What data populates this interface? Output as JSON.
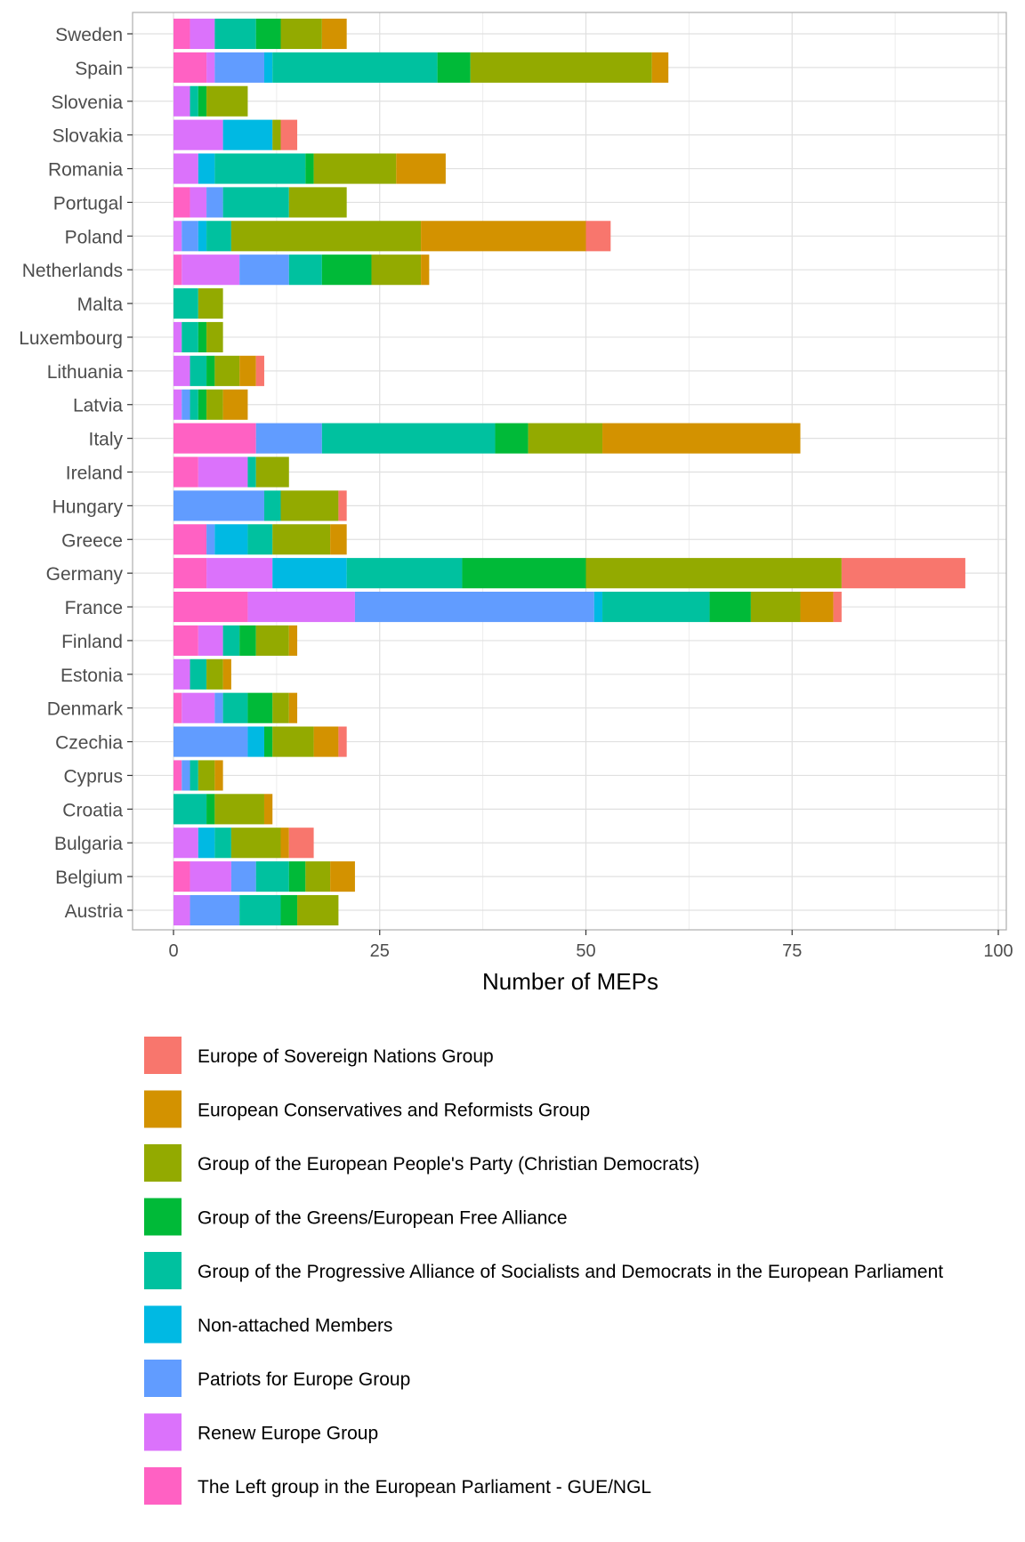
{
  "chart_data": {
    "type": "bar",
    "orientation": "horizontal",
    "stacked": true,
    "xlabel": "Number of MEPs",
    "ylabel": "",
    "xlim": [
      -10,
      100
    ],
    "x_ticks": [
      0,
      25,
      50,
      75,
      100
    ],
    "grid": true,
    "legend_position": "bottom",
    "categories": [
      "Austria",
      "Belgium",
      "Bulgaria",
      "Croatia",
      "Cyprus",
      "Czechia",
      "Denmark",
      "Estonia",
      "Finland",
      "France",
      "Germany",
      "Greece",
      "Hungary",
      "Ireland",
      "Italy",
      "Latvia",
      "Lithuania",
      "Luxembourg",
      "Malta",
      "Netherlands",
      "Poland",
      "Portugal",
      "Romania",
      "Slovakia",
      "Slovenia",
      "Spain",
      "Sweden"
    ],
    "series": [
      {
        "name": "The Left group in the European Parliament - GUE/NGL",
        "color": "#FF61C3",
        "values": [
          0,
          2,
          0,
          0,
          1,
          0,
          1,
          0,
          3,
          9,
          4,
          4,
          0,
          3,
          10,
          0,
          0,
          0,
          0,
          1,
          0,
          2,
          0,
          0,
          0,
          4,
          2
        ]
      },
      {
        "name": "Renew Europe Group",
        "color": "#DB72FB",
        "values": [
          2,
          5,
          3,
          0,
          0,
          0,
          4,
          2,
          3,
          13,
          8,
          0,
          0,
          6,
          0,
          1,
          2,
          1,
          0,
          7,
          1,
          2,
          3,
          6,
          2,
          1,
          3
        ]
      },
      {
        "name": "Patriots for Europe Group",
        "color": "#619CFF",
        "values": [
          6,
          3,
          0,
          0,
          1,
          9,
          1,
          0,
          0,
          29,
          0,
          1,
          11,
          0,
          8,
          1,
          0,
          0,
          0,
          6,
          2,
          2,
          0,
          0,
          0,
          6,
          0
        ]
      },
      {
        "name": "Non-attached Members",
        "color": "#00B9E3",
        "values": [
          0,
          0,
          2,
          0,
          0,
          2,
          0,
          0,
          0,
          1,
          9,
          4,
          0,
          0,
          0,
          0,
          0,
          0,
          0,
          0,
          1,
          0,
          2,
          6,
          0,
          1,
          0
        ]
      },
      {
        "name": "Group of the Progressive Alliance of Socialists and Democrats in the European Parliament",
        "color": "#00C19F",
        "values": [
          5,
          4,
          2,
          4,
          1,
          0,
          3,
          2,
          2,
          13,
          14,
          3,
          2,
          1,
          21,
          1,
          2,
          2,
          3,
          4,
          3,
          8,
          11,
          0,
          1,
          20,
          5
        ]
      },
      {
        "name": "Group of the Greens/European Free Alliance",
        "color": "#00BA38",
        "values": [
          2,
          2,
          0,
          1,
          0,
          1,
          3,
          0,
          2,
          5,
          15,
          0,
          0,
          0,
          4,
          1,
          1,
          1,
          0,
          6,
          0,
          0,
          1,
          0,
          1,
          4,
          3
        ]
      },
      {
        "name": "Group of the European People's Party (Christian Democrats)",
        "color": "#93AA00",
        "values": [
          5,
          3,
          6,
          6,
          2,
          5,
          2,
          2,
          4,
          6,
          31,
          7,
          7,
          4,
          9,
          2,
          3,
          2,
          3,
          6,
          23,
          7,
          10,
          1,
          5,
          22,
          5
        ]
      },
      {
        "name": "European Conservatives and Reformists Group",
        "color": "#D39200",
        "values": [
          0,
          3,
          1,
          1,
          1,
          3,
          1,
          1,
          1,
          4,
          0,
          2,
          0,
          0,
          24,
          3,
          2,
          0,
          0,
          1,
          20,
          0,
          6,
          0,
          0,
          2,
          3
        ]
      },
      {
        "name": "Europe of Sovereign Nations Group",
        "color": "#F8766D",
        "values": [
          0,
          0,
          3,
          0,
          0,
          1,
          0,
          0,
          0,
          1,
          15,
          0,
          1,
          0,
          0,
          0,
          1,
          0,
          0,
          0,
          3,
          0,
          0,
          2,
          0,
          0,
          0
        ]
      }
    ],
    "legend_entries": [
      {
        "name": "Europe of Sovereign Nations Group",
        "color": "#F8766D"
      },
      {
        "name": "European Conservatives and Reformists Group",
        "color": "#D39200"
      },
      {
        "name": "Group of the European People's Party (Christian Democrats)",
        "color": "#93AA00"
      },
      {
        "name": "Group of the Greens/European Free Alliance",
        "color": "#00BA38"
      },
      {
        "name": "Group of the Progressive Alliance of Socialists and Democrats in the European Parliament",
        "color": "#00C19F"
      },
      {
        "name": "Non-attached Members",
        "color": "#00B9E3"
      },
      {
        "name": "Patriots for Europe Group",
        "color": "#619CFF"
      },
      {
        "name": "Renew Europe Group",
        "color": "#DB72FB"
      },
      {
        "name": "The Left group in the European Parliament - GUE/NGL",
        "color": "#FF61C3"
      }
    ]
  }
}
